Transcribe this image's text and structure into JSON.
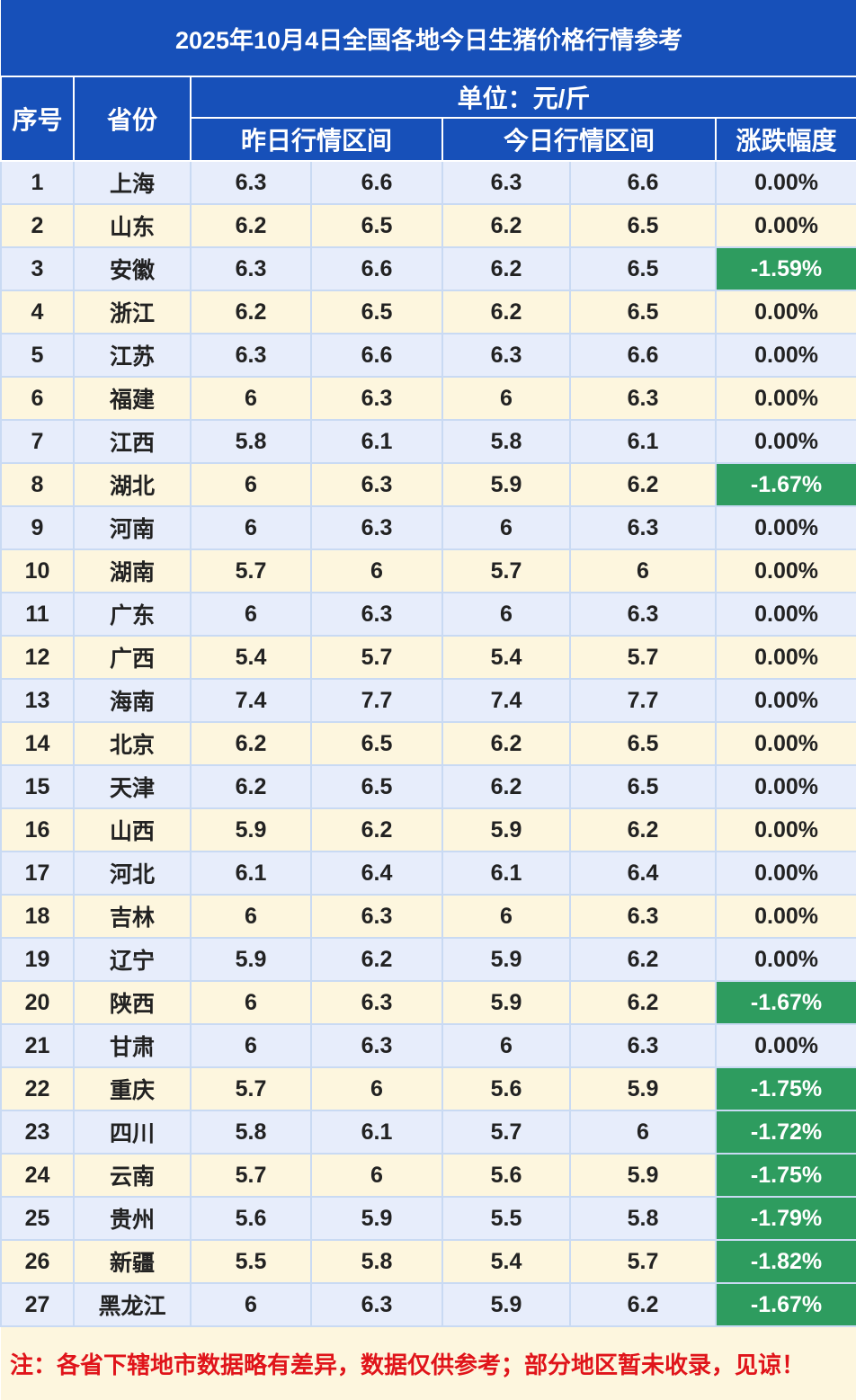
{
  "title": "2025年10月4日全国各地今日生猪价格行情参考",
  "header": {
    "index": "序号",
    "province": "省份",
    "unit": "单位：元/斤",
    "yesterday": "昨日行情区间",
    "today": "今日行情区间",
    "change": "涨跌幅度"
  },
  "colors": {
    "header_bg": "#1750b9",
    "row_blue": "#e7edfb",
    "row_cream": "#fdf6de",
    "drop_green": "#2e9c5f",
    "note_red": "#e0141a"
  },
  "rows": [
    {
      "no": "1",
      "province": "上海",
      "y_low": "6.3",
      "y_high": "6.6",
      "t_low": "6.3",
      "t_high": "6.6",
      "change": "0.00%"
    },
    {
      "no": "2",
      "province": "山东",
      "y_low": "6.2",
      "y_high": "6.5",
      "t_low": "6.2",
      "t_high": "6.5",
      "change": "0.00%"
    },
    {
      "no": "3",
      "province": "安徽",
      "y_low": "6.3",
      "y_high": "6.6",
      "t_low": "6.2",
      "t_high": "6.5",
      "change": "-1.59%"
    },
    {
      "no": "4",
      "province": "浙江",
      "y_low": "6.2",
      "y_high": "6.5",
      "t_low": "6.2",
      "t_high": "6.5",
      "change": "0.00%"
    },
    {
      "no": "5",
      "province": "江苏",
      "y_low": "6.3",
      "y_high": "6.6",
      "t_low": "6.3",
      "t_high": "6.6",
      "change": "0.00%"
    },
    {
      "no": "6",
      "province": "福建",
      "y_low": "6",
      "y_high": "6.3",
      "t_low": "6",
      "t_high": "6.3",
      "change": "0.00%"
    },
    {
      "no": "7",
      "province": "江西",
      "y_low": "5.8",
      "y_high": "6.1",
      "t_low": "5.8",
      "t_high": "6.1",
      "change": "0.00%"
    },
    {
      "no": "8",
      "province": "湖北",
      "y_low": "6",
      "y_high": "6.3",
      "t_low": "5.9",
      "t_high": "6.2",
      "change": "-1.67%"
    },
    {
      "no": "9",
      "province": "河南",
      "y_low": "6",
      "y_high": "6.3",
      "t_low": "6",
      "t_high": "6.3",
      "change": "0.00%"
    },
    {
      "no": "10",
      "province": "湖南",
      "y_low": "5.7",
      "y_high": "6",
      "t_low": "5.7",
      "t_high": "6",
      "change": "0.00%"
    },
    {
      "no": "11",
      "province": "广东",
      "y_low": "6",
      "y_high": "6.3",
      "t_low": "6",
      "t_high": "6.3",
      "change": "0.00%"
    },
    {
      "no": "12",
      "province": "广西",
      "y_low": "5.4",
      "y_high": "5.7",
      "t_low": "5.4",
      "t_high": "5.7",
      "change": "0.00%"
    },
    {
      "no": "13",
      "province": "海南",
      "y_low": "7.4",
      "y_high": "7.7",
      "t_low": "7.4",
      "t_high": "7.7",
      "change": "0.00%"
    },
    {
      "no": "14",
      "province": "北京",
      "y_low": "6.2",
      "y_high": "6.5",
      "t_low": "6.2",
      "t_high": "6.5",
      "change": "0.00%"
    },
    {
      "no": "15",
      "province": "天津",
      "y_low": "6.2",
      "y_high": "6.5",
      "t_low": "6.2",
      "t_high": "6.5",
      "change": "0.00%"
    },
    {
      "no": "16",
      "province": "山西",
      "y_low": "5.9",
      "y_high": "6.2",
      "t_low": "5.9",
      "t_high": "6.2",
      "change": "0.00%"
    },
    {
      "no": "17",
      "province": "河北",
      "y_low": "6.1",
      "y_high": "6.4",
      "t_low": "6.1",
      "t_high": "6.4",
      "change": "0.00%"
    },
    {
      "no": "18",
      "province": "吉林",
      "y_low": "6",
      "y_high": "6.3",
      "t_low": "6",
      "t_high": "6.3",
      "change": "0.00%"
    },
    {
      "no": "19",
      "province": "辽宁",
      "y_low": "5.9",
      "y_high": "6.2",
      "t_low": "5.9",
      "t_high": "6.2",
      "change": "0.00%"
    },
    {
      "no": "20",
      "province": "陕西",
      "y_low": "6",
      "y_high": "6.3",
      "t_low": "5.9",
      "t_high": "6.2",
      "change": "-1.67%"
    },
    {
      "no": "21",
      "province": "甘肃",
      "y_low": "6",
      "y_high": "6.3",
      "t_low": "6",
      "t_high": "6.3",
      "change": "0.00%"
    },
    {
      "no": "22",
      "province": "重庆",
      "y_low": "5.7",
      "y_high": "6",
      "t_low": "5.6",
      "t_high": "5.9",
      "change": "-1.75%"
    },
    {
      "no": "23",
      "province": "四川",
      "y_low": "5.8",
      "y_high": "6.1",
      "t_low": "5.7",
      "t_high": "6",
      "change": "-1.72%"
    },
    {
      "no": "24",
      "province": "云南",
      "y_low": "5.7",
      "y_high": "6",
      "t_low": "5.6",
      "t_high": "5.9",
      "change": "-1.75%"
    },
    {
      "no": "25",
      "province": "贵州",
      "y_low": "5.6",
      "y_high": "5.9",
      "t_low": "5.5",
      "t_high": "5.8",
      "change": "-1.79%"
    },
    {
      "no": "26",
      "province": "新疆",
      "y_low": "5.5",
      "y_high": "5.8",
      "t_low": "5.4",
      "t_high": "5.7",
      "change": "-1.82%"
    },
    {
      "no": "27",
      "province": "黑龙江",
      "y_low": "6",
      "y_high": "6.3",
      "t_low": "5.9",
      "t_high": "6.2",
      "change": "-1.67%"
    }
  ],
  "note": "注：各省下辖地市数据略有差异，数据仅供参考；部分地区暂未收录，见谅！"
}
